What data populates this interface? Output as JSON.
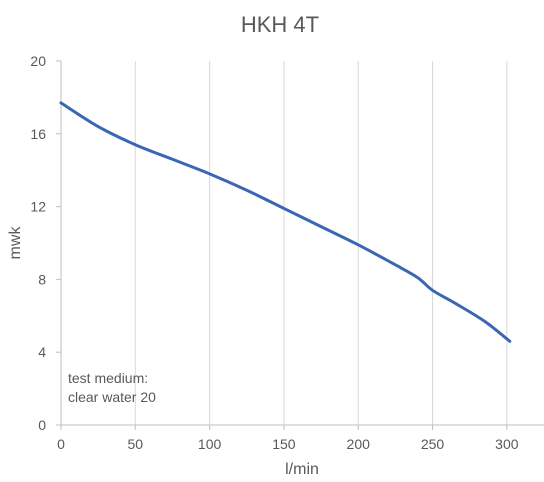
{
  "chart_data": {
    "type": "line",
    "title": "HKH 4T",
    "xlabel": "l/min",
    "ylabel": "mwk",
    "xlim": [
      0,
      325
    ],
    "ylim": [
      0,
      20
    ],
    "xticks": [
      0,
      50,
      100,
      150,
      200,
      250,
      300
    ],
    "yticks": [
      0,
      4,
      8,
      12,
      16,
      20
    ],
    "grid": "vertical",
    "annotation": [
      "test medium:",
      "clear water 20"
    ],
    "series": [
      {
        "color": "#3a66b4",
        "x": [
          0,
          25,
          50,
          75,
          100,
          125,
          150,
          175,
          200,
          225,
          240,
          250,
          265,
          285,
          302
        ],
        "y": [
          17.7,
          16.4,
          15.4,
          14.6,
          13.8,
          12.9,
          11.9,
          10.9,
          9.9,
          8.8,
          8.1,
          7.4,
          6.7,
          5.7,
          4.6
        ]
      }
    ],
    "colors": {
      "gridline": "#d9d9d9",
      "axis": "#bfbfbf",
      "text": "#595959"
    }
  }
}
